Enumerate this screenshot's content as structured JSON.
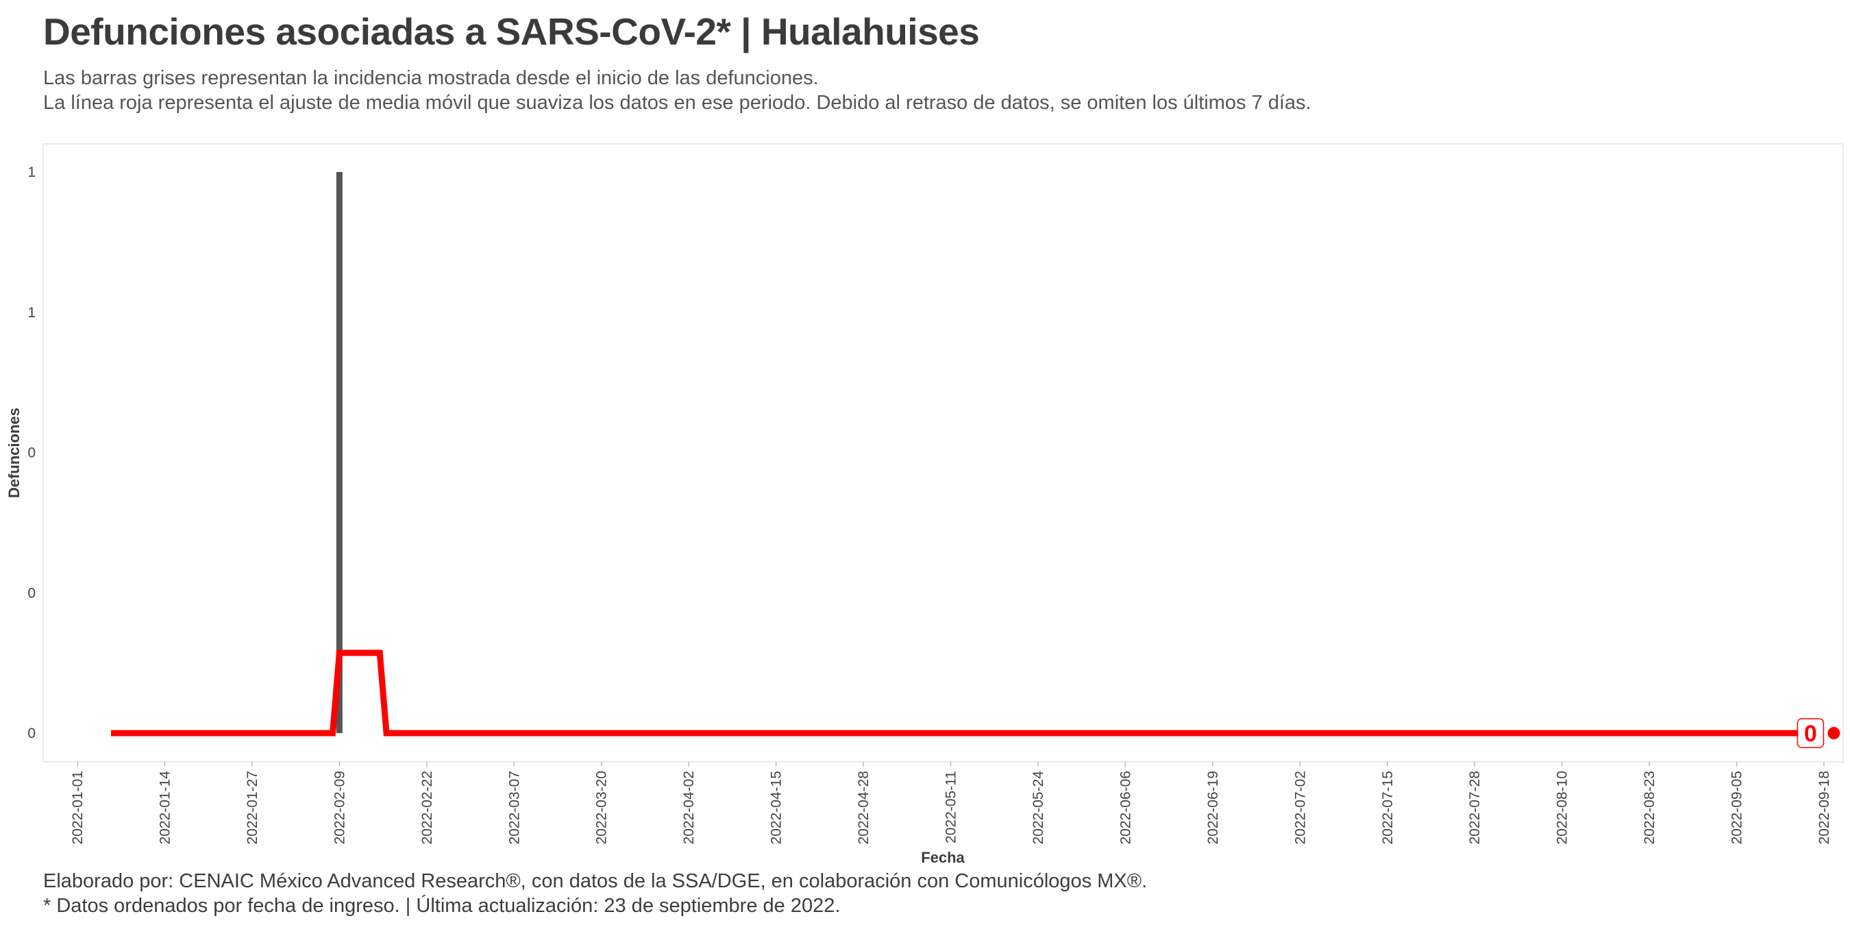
{
  "header": {
    "title": "Defunciones asociadas a SARS-CoV-2* | Hualahuises",
    "subtitle_line1": "Las barras grises representan la incidencia mostrada desde el inicio de las defunciones.",
    "subtitle_line2": "La línea roja representa el ajuste de media móvil que suaviza los datos en ese periodo. Debido al retraso de datos, se omiten los últimos 7 días."
  },
  "footer": {
    "caption_line1": "Elaborado por: CENAIC México Advanced Research®, con datos de la SSA/DGE, en colaboración con Comunicólogos MX®.",
    "caption_line2": "* Datos ordenados por fecha de ingreso. | Última actualización: 23 de septiembre de 2022."
  },
  "colors": {
    "bar": "#555555",
    "line": "#ff0000",
    "panel_border": "#ebebeb"
  },
  "chart_data": {
    "type": "bar",
    "xlabel": "Fecha",
    "ylabel": "Defunciones",
    "x_range": [
      "2022-01-01",
      "2022-09-18"
    ],
    "ylim": [
      0,
      1
    ],
    "x_ticks": [
      "2022-01-01",
      "2022-01-14",
      "2022-01-27",
      "2022-02-09",
      "2022-02-22",
      "2022-03-07",
      "2022-03-20",
      "2022-04-02",
      "2022-04-15",
      "2022-04-28",
      "2022-05-11",
      "2022-05-24",
      "2022-06-06",
      "2022-06-19",
      "2022-07-02",
      "2022-07-15",
      "2022-07-28",
      "2022-08-10",
      "2022-08-23",
      "2022-09-05",
      "2022-09-18"
    ],
    "y_ticks": [
      {
        "value": 0,
        "label": "0"
      },
      {
        "value": 0.25,
        "label": "0"
      },
      {
        "value": 0.5,
        "label": "0"
      },
      {
        "value": 0.75,
        "label": "1"
      },
      {
        "value": 1,
        "label": "1"
      }
    ],
    "grid": false,
    "series": [
      {
        "kind": "bar",
        "points": [
          {
            "x": "2022-02-09",
            "y": 1
          }
        ]
      },
      {
        "kind": "line",
        "points": [
          {
            "x": "2022-01-06",
            "y": 0
          },
          {
            "x": "2022-02-08",
            "y": 0
          },
          {
            "x": "2022-02-09",
            "y": 0.143
          },
          {
            "x": "2022-02-15",
            "y": 0.143
          },
          {
            "x": "2022-02-16",
            "y": 0
          },
          {
            "x": "2022-09-16",
            "y": 0
          }
        ]
      }
    ],
    "end_label": {
      "x": "2022-09-16",
      "y": 0,
      "text": "0"
    }
  }
}
